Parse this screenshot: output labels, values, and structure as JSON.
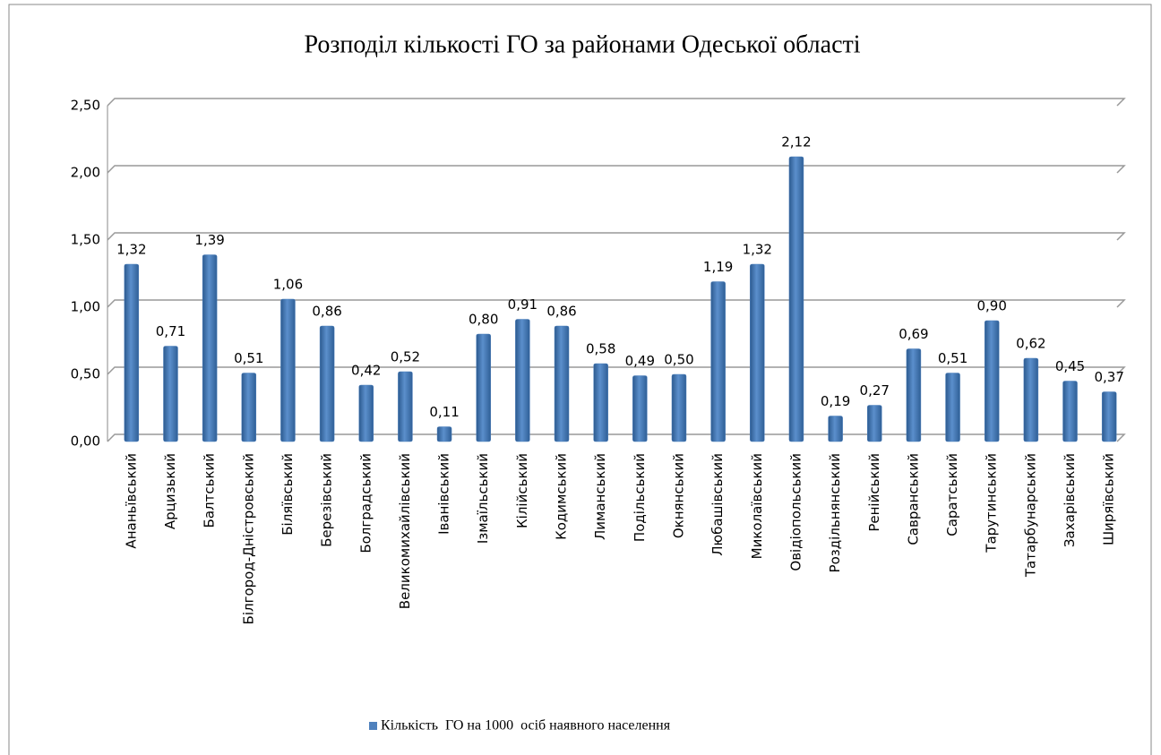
{
  "chart_data": {
    "type": "bar",
    "title": "Розподіл кількості ГО за районами Одеської області",
    "categories": [
      "Ананьївський",
      "Арцизький",
      "Балтський",
      "Білгород-Дністровський",
      "Біляївський",
      "Березівський",
      "Болградський",
      "Великомихайлівський",
      "Іванівський",
      "Ізмаїльський",
      "Кілійський",
      "Кодимський",
      "Лиманський",
      "Подільський",
      "Окнянський",
      "Любашівський",
      "Миколаївський",
      "Овідіопольський",
      "Роздільнянський",
      "Ренійський",
      "Савранський",
      "Саратський",
      "Тарутинський",
      "Татарбунарський",
      "Захарівський",
      "Ширяївський"
    ],
    "series": [
      {
        "name": "Кількість  ГО на 1000  осіб наявного населення",
        "color": "#4f81bd",
        "values": [
          1.32,
          0.71,
          1.39,
          0.51,
          1.06,
          0.86,
          0.42,
          0.52,
          0.11,
          0.8,
          0.91,
          0.86,
          0.58,
          0.49,
          0.5,
          1.19,
          1.32,
          2.12,
          0.19,
          0.27,
          0.69,
          0.51,
          0.9,
          0.62,
          0.45,
          0.37
        ],
        "value_labels": [
          "1,32",
          "0,71",
          "1,39",
          "0,51",
          "1,06",
          "0,86",
          "0,42",
          "0,52",
          "0,11",
          "0,80",
          "0,91",
          "0,86",
          "0,58",
          "0,49",
          "0,50",
          "1,19",
          "1,32",
          "2,12",
          "0,19",
          "0,27",
          "0,69",
          "0,51",
          "0,90",
          "0,62",
          "0,45",
          "0,37"
        ]
      }
    ],
    "ylim": [
      0,
      2.5
    ],
    "yticks": [
      {
        "value": 0,
        "label": "0,00"
      },
      {
        "value": 0.5,
        "label": "0,50"
      },
      {
        "value": 1,
        "label": "1,00"
      },
      {
        "value": 1.5,
        "label": "1,50"
      },
      {
        "value": 2,
        "label": "2,00"
      },
      {
        "value": 2.5,
        "label": "2,50"
      }
    ],
    "grid": true,
    "legend": "bottom"
  }
}
